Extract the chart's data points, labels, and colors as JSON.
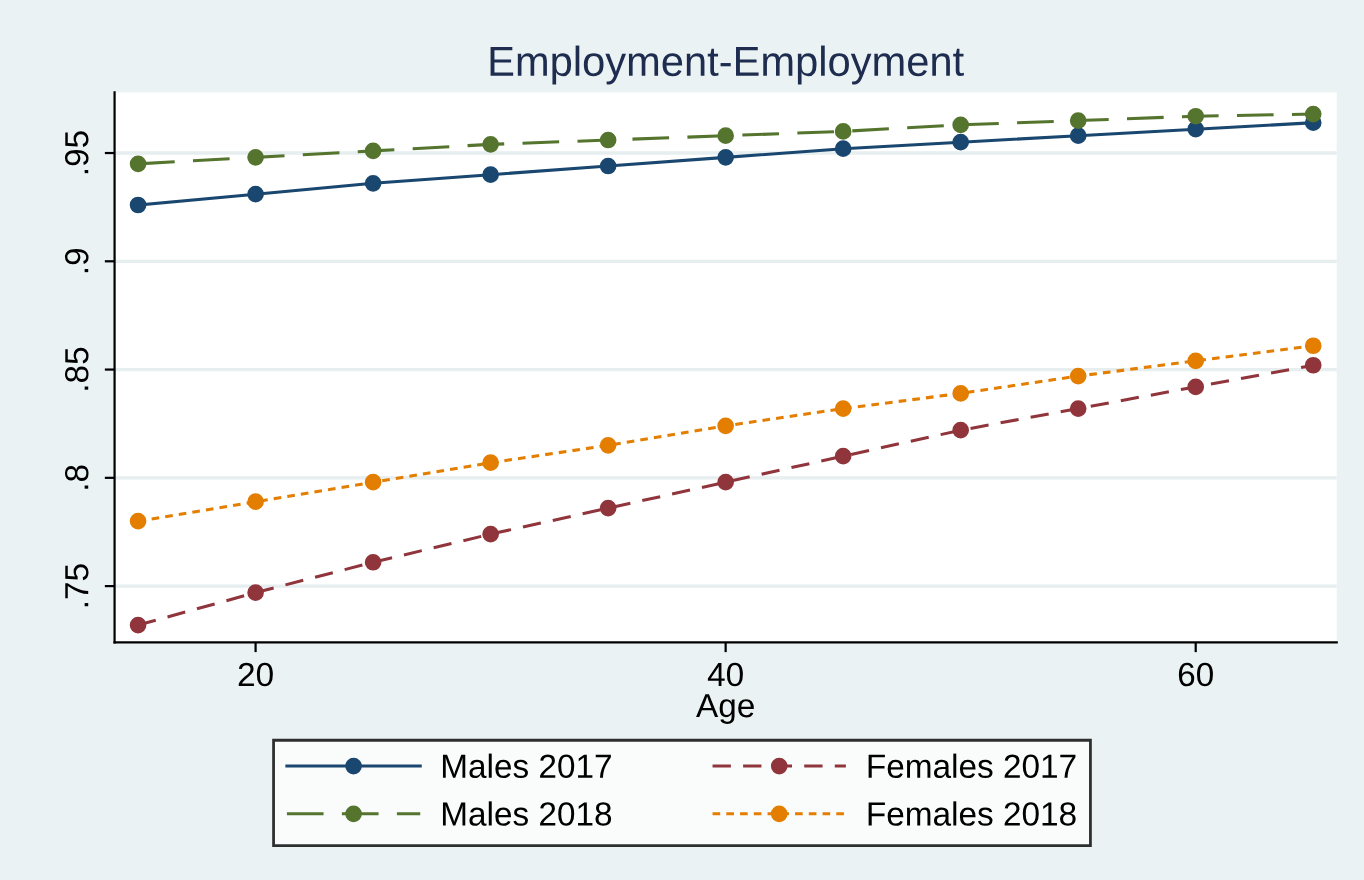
{
  "chart_data": {
    "type": "line",
    "title": "Employment-Employment",
    "xlabel": "Age",
    "x": [
      15,
      20,
      25,
      30,
      35,
      40,
      45,
      50,
      55,
      60,
      65
    ],
    "series": [
      {
        "name": "Males 2017",
        "color": "#1a476f",
        "line_style": "solid",
        "values": [
          0.926,
          0.931,
          0.936,
          0.94,
          0.944,
          0.948,
          0.952,
          0.955,
          0.958,
          0.961,
          0.964
        ]
      },
      {
        "name": "Males 2018",
        "color": "#55752f",
        "line_style": "longdash",
        "values": [
          0.945,
          0.948,
          0.951,
          0.954,
          0.956,
          0.958,
          0.96,
          0.963,
          0.965,
          0.967,
          0.968
        ]
      },
      {
        "name": "Females 2017",
        "color": "#90353b",
        "line_style": "dashed",
        "values": [
          0.732,
          0.747,
          0.761,
          0.774,
          0.786,
          0.798,
          0.81,
          0.822,
          0.832,
          0.842,
          0.852
        ]
      },
      {
        "name": "Females 2018",
        "color": "#e37e00",
        "line_style": "dotted",
        "values": [
          0.78,
          0.789,
          0.798,
          0.807,
          0.815,
          0.824,
          0.832,
          0.839,
          0.847,
          0.854,
          0.861
        ]
      }
    ],
    "xlim": [
      14,
      66
    ],
    "ylim": [
      0.724,
      0.978
    ],
    "xticks": [
      20,
      40,
      60
    ],
    "yticks": [
      {
        "value": 0.75,
        "label": ".75"
      },
      {
        "value": 0.8,
        "label": ".8"
      },
      {
        "value": 0.85,
        "label": ".85"
      },
      {
        "value": 0.9,
        "label": ".9"
      },
      {
        "value": 0.95,
        "label": ".95"
      }
    ],
    "grid": "y",
    "legend": "bottom",
    "marker": "circle"
  }
}
